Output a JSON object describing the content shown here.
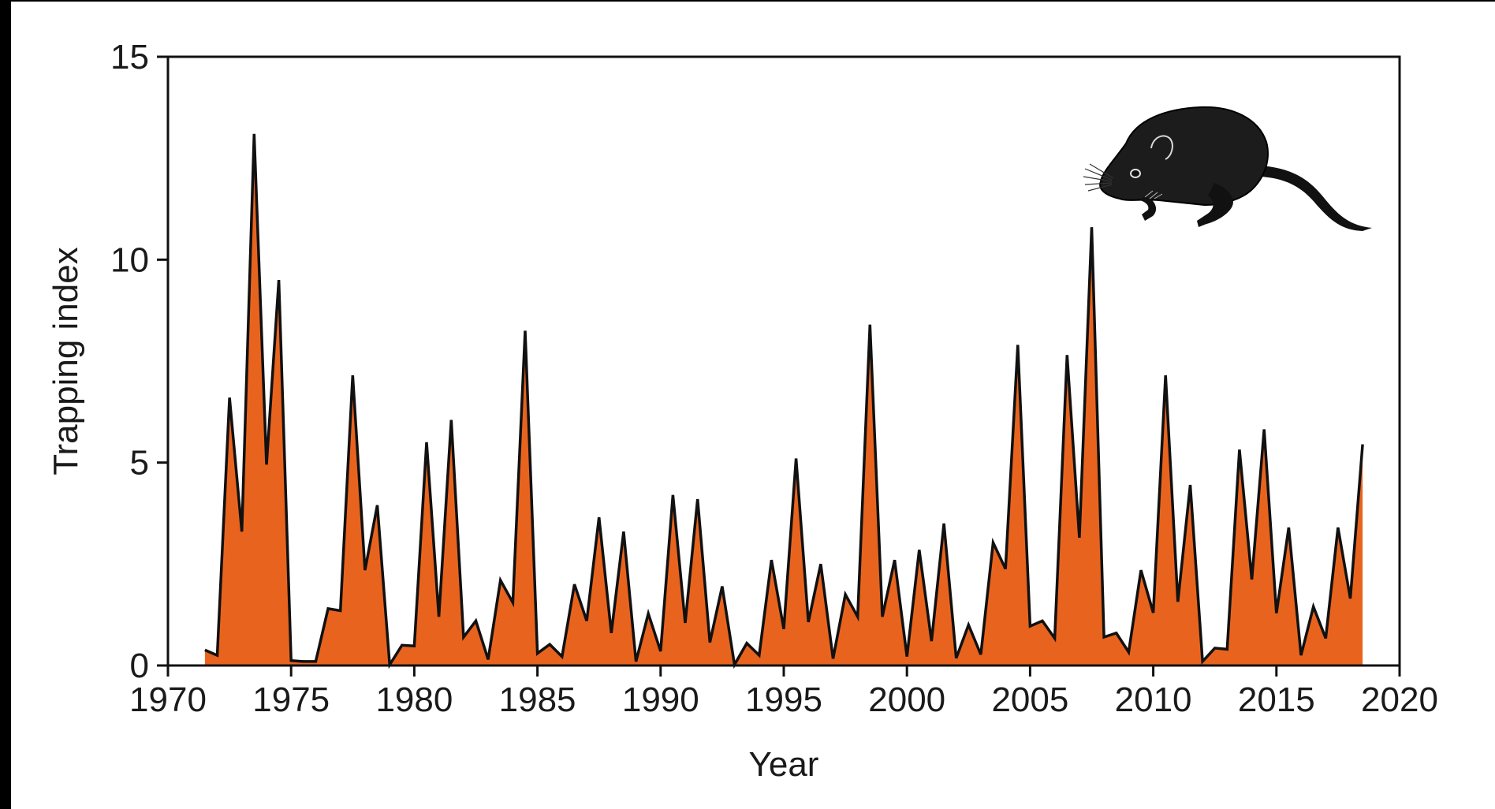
{
  "chart_data": {
    "type": "area",
    "title": "",
    "xlabel": "Year",
    "ylabel": "Trapping index",
    "xlim": [
      1970,
      2020
    ],
    "ylim": [
      0,
      15
    ],
    "xticks": [
      1970,
      1975,
      1980,
      1985,
      1990,
      1995,
      2000,
      2005,
      2010,
      2015,
      2020
    ],
    "yticks": [
      0,
      5,
      10,
      15
    ],
    "grid": false,
    "legend": "none",
    "fill_color": "#e8641e",
    "line_color": "#111111",
    "illustration": "vole-icon",
    "series": [
      {
        "x": [
          1971.5,
          1972.0,
          1972.5,
          1973.0,
          1973.5,
          1974.0,
          1974.5,
          1975.0,
          1975.5,
          1976.0,
          1976.5,
          1977.0,
          1977.5,
          1978.0,
          1978.5,
          1979.0,
          1979.5,
          1980.0,
          1980.5,
          1981.0,
          1981.5,
          1982.0,
          1982.5,
          1983.0,
          1983.5,
          1984.0,
          1984.5,
          1985.0,
          1985.5,
          1986.0,
          1986.5,
          1987.0,
          1987.5,
          1988.0,
          1988.5,
          1989.0,
          1989.5,
          1990.0,
          1990.5,
          1991.0,
          1991.5,
          1992.0,
          1992.5,
          1993.0,
          1993.5,
          1994.0,
          1994.5,
          1995.0,
          1995.5,
          1996.0,
          1996.5,
          1997.0,
          1997.5,
          1998.0,
          1998.5,
          1999.0,
          1999.5,
          2000.0,
          2000.5,
          2001.0,
          2001.5,
          2002.0,
          2002.5,
          2003.0,
          2003.5,
          2004.0,
          2004.5,
          2005.0,
          2005.5,
          2006.0,
          2006.5,
          2007.0,
          2007.5,
          2008.0,
          2008.5,
          2009.0,
          2009.5,
          2010.0,
          2010.5,
          2011.0,
          2011.5,
          2012.0,
          2012.5,
          2013.0,
          2013.5,
          2014.0,
          2014.5,
          2015.0,
          2015.5,
          2016.0,
          2016.5,
          2017.0,
          2017.5,
          2018.0,
          2018.5
        ],
        "values": [
          0.38,
          0.25,
          6.6,
          3.3,
          13.1,
          4.95,
          9.5,
          0.12,
          0.1,
          0.1,
          1.4,
          1.35,
          7.15,
          2.35,
          3.95,
          0.02,
          0.5,
          0.48,
          5.5,
          1.2,
          6.05,
          0.7,
          1.1,
          0.15,
          2.1,
          1.55,
          8.25,
          0.3,
          0.52,
          0.22,
          2.0,
          1.1,
          3.65,
          0.8,
          3.3,
          0.1,
          1.28,
          0.35,
          4.2,
          1.05,
          4.1,
          0.57,
          1.95,
          0.02,
          0.55,
          0.25,
          2.6,
          0.9,
          5.1,
          1.07,
          2.5,
          0.17,
          1.75,
          1.2,
          8.4,
          1.2,
          2.6,
          0.22,
          2.85,
          0.6,
          3.5,
          0.18,
          1.0,
          0.27,
          3.03,
          2.38,
          7.9,
          0.97,
          1.1,
          0.67,
          7.65,
          3.15,
          10.8,
          0.7,
          0.8,
          0.33,
          2.35,
          1.3,
          7.15,
          1.57,
          4.45,
          0.1,
          0.43,
          0.4,
          5.32,
          2.12,
          5.82,
          1.29,
          3.4,
          0.25,
          1.45,
          0.67,
          3.4,
          1.65,
          5.45
        ]
      }
    ]
  }
}
